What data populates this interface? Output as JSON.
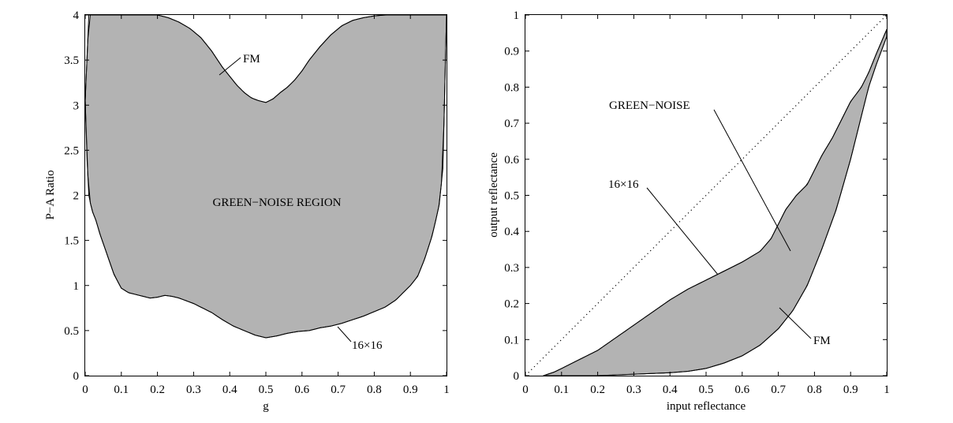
{
  "chart_data": [
    {
      "type": "area",
      "xlabel": "g",
      "ylabel": "P−A Ratio",
      "xlim": [
        0,
        1
      ],
      "ylim": [
        0,
        4
      ],
      "xticks": [
        "0",
        "0.1",
        "0.2",
        "0.3",
        "0.4",
        "0.5",
        "0.6",
        "0.7",
        "0.8",
        "0.9",
        "1"
      ],
      "yticks": [
        "0",
        "0.5",
        "1",
        "1.5",
        "2",
        "2.5",
        "3",
        "3.5",
        "4"
      ],
      "grid": false,
      "region_label": "GREEN−NOISE REGION",
      "series": [
        {
          "name": "FM",
          "x": [
            0.0,
            0.01,
            0.05,
            0.1,
            0.15,
            0.2,
            0.23,
            0.26,
            0.29,
            0.32,
            0.35,
            0.38,
            0.4,
            0.42,
            0.44,
            0.46,
            0.48,
            0.5,
            0.52,
            0.54,
            0.56,
            0.58,
            0.6,
            0.62,
            0.65,
            0.68,
            0.71,
            0.74,
            0.77,
            0.8,
            0.83,
            0.86,
            0.9,
            0.95,
            0.99,
            1.0
          ],
          "y": [
            3.05,
            4.0,
            4.0,
            4.0,
            4.0,
            4.0,
            3.97,
            3.92,
            3.85,
            3.75,
            3.6,
            3.42,
            3.32,
            3.22,
            3.14,
            3.08,
            3.05,
            3.03,
            3.07,
            3.14,
            3.2,
            3.28,
            3.38,
            3.5,
            3.65,
            3.78,
            3.88,
            3.94,
            3.97,
            3.99,
            4.0,
            4.0,
            4.0,
            4.0,
            4.0,
            4.0
          ]
        },
        {
          "name": "16×16",
          "x": [
            0.0,
            0.005,
            0.01,
            0.015,
            0.02,
            0.03,
            0.04,
            0.06,
            0.08,
            0.1,
            0.12,
            0.14,
            0.16,
            0.18,
            0.2,
            0.22,
            0.24,
            0.26,
            0.28,
            0.3,
            0.32,
            0.35,
            0.38,
            0.41,
            0.44,
            0.47,
            0.5,
            0.53,
            0.56,
            0.59,
            0.62,
            0.65,
            0.68,
            0.71,
            0.74,
            0.77,
            0.8,
            0.83,
            0.86,
            0.88,
            0.9,
            0.92,
            0.94,
            0.96,
            0.97,
            0.98,
            0.99,
            1.0
          ],
          "y": [
            3.05,
            2.4,
            2.0,
            1.9,
            1.82,
            1.72,
            1.58,
            1.35,
            1.12,
            0.97,
            0.92,
            0.9,
            0.88,
            0.86,
            0.87,
            0.89,
            0.88,
            0.86,
            0.83,
            0.8,
            0.76,
            0.7,
            0.62,
            0.55,
            0.5,
            0.45,
            0.42,
            0.44,
            0.47,
            0.49,
            0.5,
            0.53,
            0.55,
            0.58,
            0.62,
            0.66,
            0.71,
            0.76,
            0.84,
            0.92,
            1.0,
            1.1,
            1.3,
            1.55,
            1.72,
            1.9,
            2.3,
            4.0
          ]
        }
      ],
      "annotations": [
        "FM",
        "16×16"
      ]
    },
    {
      "type": "area",
      "xlabel": "input reflectance",
      "ylabel": "output reflectance",
      "xlim": [
        0,
        1
      ],
      "ylim": [
        0,
        1
      ],
      "xticks": [
        "0",
        "0.1",
        "0.2",
        "0.3",
        "0.4",
        "0.5",
        "0.6",
        "0.7",
        "0.8",
        "0.9",
        "1"
      ],
      "yticks": [
        "0",
        "0.1",
        "0.2",
        "0.3",
        "0.4",
        "0.5",
        "0.6",
        "0.7",
        "0.8",
        "0.9",
        "1"
      ],
      "grid": false,
      "series": [
        {
          "name": "16×16",
          "x": [
            0.05,
            0.08,
            0.1,
            0.15,
            0.2,
            0.25,
            0.3,
            0.35,
            0.4,
            0.45,
            0.5,
            0.55,
            0.6,
            0.65,
            0.68,
            0.7,
            0.72,
            0.75,
            0.78,
            0.8,
            0.82,
            0.85,
            0.88,
            0.9,
            0.93,
            0.95,
            0.97,
            1.0
          ],
          "y": [
            0.0,
            0.01,
            0.02,
            0.045,
            0.07,
            0.105,
            0.14,
            0.175,
            0.21,
            0.24,
            0.265,
            0.29,
            0.315,
            0.345,
            0.38,
            0.42,
            0.46,
            0.5,
            0.53,
            0.57,
            0.61,
            0.66,
            0.72,
            0.76,
            0.8,
            0.84,
            0.89,
            0.96
          ]
        },
        {
          "name": "FM",
          "x": [
            0.15,
            0.2,
            0.25,
            0.3,
            0.35,
            0.4,
            0.45,
            0.5,
            0.55,
            0.6,
            0.65,
            0.7,
            0.74,
            0.78,
            0.82,
            0.86,
            0.9,
            0.93,
            0.95,
            0.97,
            1.0
          ],
          "y": [
            0.0,
            0.0,
            0.002,
            0.004,
            0.006,
            0.008,
            0.012,
            0.02,
            0.035,
            0.055,
            0.085,
            0.13,
            0.18,
            0.25,
            0.35,
            0.46,
            0.6,
            0.72,
            0.8,
            0.86,
            0.94
          ]
        },
        {
          "name": "",
          "style": "dotted diagonal",
          "x": [
            0,
            1
          ],
          "y": [
            0,
            1
          ]
        }
      ],
      "annotations": [
        "GREEN−NOISE",
        "16×16",
        "FM"
      ]
    }
  ]
}
